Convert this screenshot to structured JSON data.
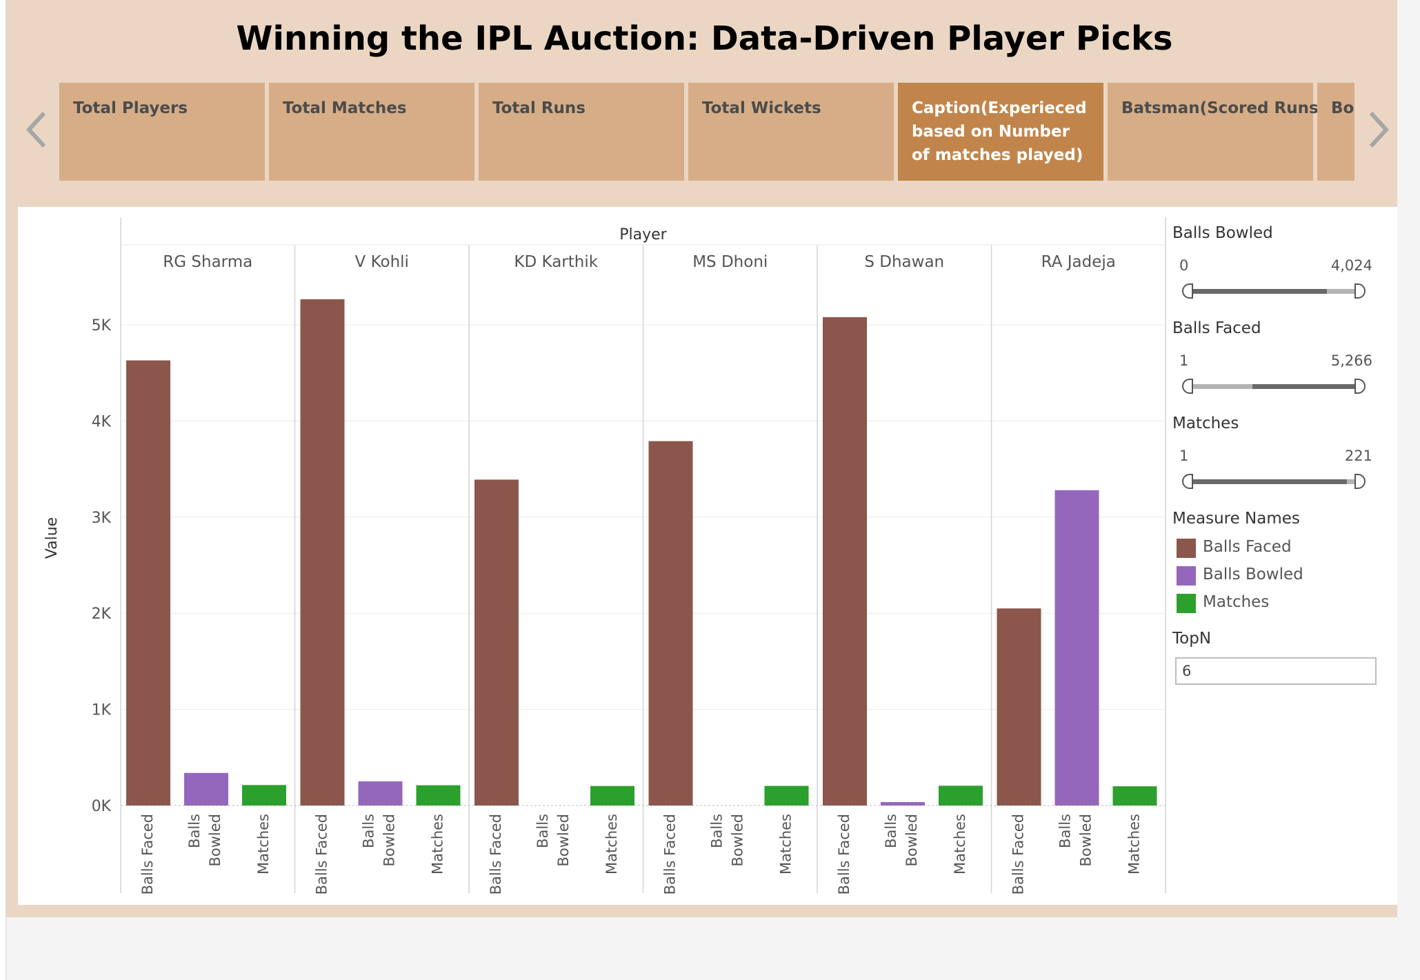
{
  "dashboard": {
    "title": "Winning the IPL Auction: Data-Driven Player Picks"
  },
  "tabs": [
    {
      "label": "Total Players",
      "active": false
    },
    {
      "label": "Total Matches",
      "active": false
    },
    {
      "label": "Total Runs",
      "active": false
    },
    {
      "label": "Total Wickets",
      "active": false
    },
    {
      "label": "Caption(Experieced based on Number of matches played)",
      "active": true
    },
    {
      "label": "Batsman(Scored Runs)",
      "active": false
    },
    {
      "label": "Bowler Wickets",
      "active": false
    }
  ],
  "nav": {
    "prev_icon": "chevron-left-icon",
    "next_icon": "chevron-right-icon"
  },
  "filters": {
    "balls_bowled": {
      "label": "Balls Bowled",
      "min_label": "0",
      "max_label": "4,024",
      "range_fraction": [
        0.0,
        0.8
      ]
    },
    "balls_faced": {
      "label": "Balls Faced",
      "min_label": "1",
      "max_label": "5,266",
      "range_fraction": [
        0.38,
        1.0
      ]
    },
    "matches": {
      "label": "Matches",
      "min_label": "1",
      "max_label": "221",
      "range_fraction": [
        0.0,
        0.91
      ]
    }
  },
  "legend": {
    "title": "Measure Names",
    "items": [
      {
        "label": "Balls Faced",
        "color": "#8b564c"
      },
      {
        "label": "Balls Bowled",
        "color": "#9467bd"
      },
      {
        "label": "Matches",
        "color": "#2ca02c"
      }
    ]
  },
  "topn": {
    "label": "TopN",
    "value": "6"
  },
  "chart_data": {
    "type": "bar",
    "column_header": "Player",
    "ylabel": "Value",
    "ylim": [
      0,
      5600
    ],
    "y_ticks": [
      0,
      1000,
      2000,
      3000,
      4000,
      5000
    ],
    "y_tick_labels": [
      "0K",
      "1K",
      "2K",
      "3K",
      "4K",
      "5K"
    ],
    "grid": true,
    "players": [
      "RG Sharma",
      "V Kohli",
      "KD Karthik",
      "MS Dhoni",
      "S Dhawan",
      "RA Jadeja"
    ],
    "measures": [
      "Balls Faced",
      "Balls Bowled",
      "Matches"
    ],
    "measure_colors": [
      "#8b564c",
      "#9467bd",
      "#2ca02c"
    ],
    "series": [
      {
        "name": "Balls Faced",
        "values": [
          4630,
          5266,
          3390,
          3790,
          5080,
          2050
        ]
      },
      {
        "name": "Balls Bowled",
        "values": [
          339,
          251,
          0,
          0,
          36,
          3280
        ]
      },
      {
        "name": "Matches",
        "values": [
          213,
          211,
          203,
          204,
          206,
          200
        ]
      }
    ]
  }
}
